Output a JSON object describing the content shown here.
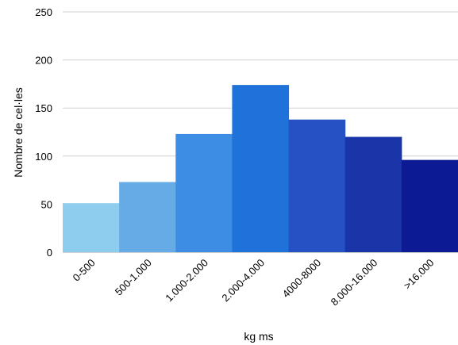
{
  "chart_data": {
    "type": "bar",
    "categories": [
      "0-500",
      "500-1.000",
      "1.000-2.000",
      "2.000-4.000",
      "4000-8000",
      "8.000-16.000",
      ">16.000"
    ],
    "values": [
      51,
      73,
      123,
      174,
      138,
      120,
      96
    ],
    "colors": [
      "#8fcdee",
      "#67abe6",
      "#3d8de4",
      "#1f72da",
      "#2452c4",
      "#1a35a8",
      "#0c1a94"
    ],
    "xlabel": "kg ms",
    "ylabel": "Nombre de cel·les",
    "ylim": [
      0,
      250
    ],
    "yticks": [
      "0",
      "50",
      "100",
      "150",
      "200",
      "250"
    ],
    "grid": true,
    "legend": "none"
  }
}
